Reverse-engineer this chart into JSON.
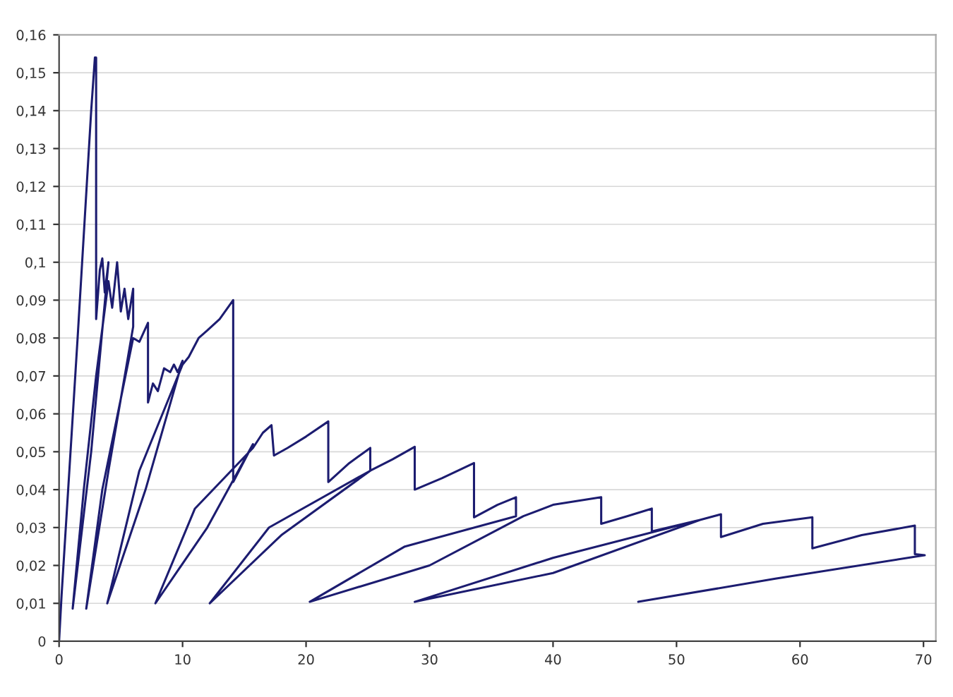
{
  "chart_data": {
    "type": "line",
    "x": [
      0,
      0.2,
      1.5,
      2.6,
      2.9,
      3.0,
      3.0,
      3.3,
      3.5,
      3.7,
      4.0,
      2.6,
      1.1,
      2.0,
      3.0,
      4.0,
      4.3,
      4.7,
      5.0,
      5.3,
      5.6,
      6.0,
      6.0,
      4.0,
      2.2,
      3.5,
      6.0,
      6.5,
      7.2,
      7.2,
      7.6,
      8.0,
      8.5,
      9.0,
      9.3,
      9.6,
      10.0,
      7.0,
      3.9,
      6.5,
      10.0,
      10.5,
      11.3,
      12.0,
      13.0,
      14.1,
      14.1,
      15.7,
      12.0,
      7.8,
      11.0,
      15.7,
      16.5,
      17.2,
      17.4,
      18.5,
      20.0,
      21.8,
      21.8,
      23.5,
      25.2,
      25.2,
      18.0,
      12.2,
      17.0,
      25.2,
      27.0,
      28.8,
      28.8,
      31.0,
      33.6,
      33.6,
      35.5,
      37.0,
      37.0,
      28.0,
      20.3,
      30.0,
      37.6,
      40.0,
      43.9,
      43.9,
      46.0,
      48.0,
      48.0,
      51.9,
      40.0,
      28.8,
      40.0,
      51.9,
      53.6,
      53.6,
      57.0,
      61.0,
      61.0,
      65.0,
      69.3,
      69.3,
      70.1,
      58.0,
      46.9
    ],
    "series": [
      {
        "color": "#1c1c70",
        "values": [
          0,
          0.012,
          0.08,
          0.14,
          0.154,
          0.154,
          0.085,
          0.098,
          0.101,
          0.092,
          0.1,
          0.05,
          0.0086,
          0.04,
          0.07,
          0.095,
          0.088,
          0.1,
          0.087,
          0.093,
          0.085,
          0.093,
          0.083,
          0.045,
          0.0086,
          0.04,
          0.08,
          0.079,
          0.084,
          0.063,
          0.068,
          0.066,
          0.072,
          0.071,
          0.073,
          0.071,
          0.074,
          0.04,
          0.01,
          0.045,
          0.073,
          0.075,
          0.08,
          0.082,
          0.085,
          0.09,
          0.042,
          0.052,
          0.03,
          0.01,
          0.035,
          0.051,
          0.055,
          0.057,
          0.049,
          0.051,
          0.054,
          0.058,
          0.042,
          0.047,
          0.051,
          0.045,
          0.028,
          0.01,
          0.03,
          0.045,
          0.048,
          0.0513,
          0.04,
          0.043,
          0.047,
          0.0327,
          0.036,
          0.038,
          0.033,
          0.025,
          0.0104,
          0.02,
          0.033,
          0.036,
          0.038,
          0.031,
          0.033,
          0.035,
          0.029,
          0.032,
          0.022,
          0.0104,
          0.018,
          0.032,
          0.0335,
          0.0275,
          0.031,
          0.0327,
          0.0245,
          0.028,
          0.0305,
          0.023,
          0.0227,
          0.0165,
          0.0104
        ]
      }
    ],
    "xlim": [
      0,
      71
    ],
    "xticks": [
      0,
      10,
      20,
      30,
      40,
      50,
      60,
      70
    ],
    "ylim": [
      0,
      0.16
    ],
    "yticks": [
      {
        "value": 0,
        "label": "0"
      },
      {
        "value": 0.01,
        "label": "0,01"
      },
      {
        "value": 0.02,
        "label": "0,02"
      },
      {
        "value": 0.03,
        "label": "0,03"
      },
      {
        "value": 0.04,
        "label": "0,04"
      },
      {
        "value": 0.05,
        "label": "0,05"
      },
      {
        "value": 0.06,
        "label": "0,06"
      },
      {
        "value": 0.07,
        "label": "0,07"
      },
      {
        "value": 0.08,
        "label": "0,08"
      },
      {
        "value": 0.09,
        "label": "0,09"
      },
      {
        "value": 0.1,
        "label": "0,1"
      },
      {
        "value": 0.11,
        "label": "0,11"
      },
      {
        "value": 0.12,
        "label": "0,12"
      },
      {
        "value": 0.13,
        "label": "0,13"
      },
      {
        "value": 0.14,
        "label": "0,14"
      },
      {
        "value": 0.15,
        "label": "0,15"
      },
      {
        "value": 0.16,
        "label": "0,16"
      }
    ],
    "grid": "y",
    "line_style": "solid",
    "marker": "none"
  }
}
